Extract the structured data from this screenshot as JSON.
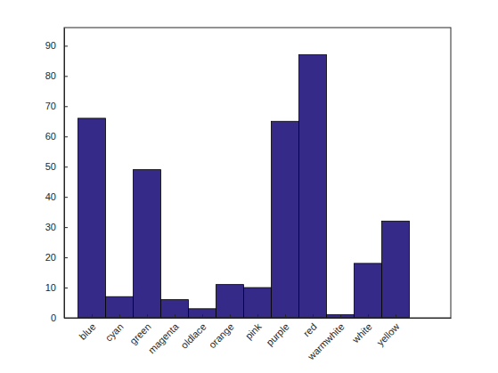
{
  "chart_data": {
    "type": "bar",
    "categories": [
      "blue",
      "cyan",
      "green",
      "magenta",
      "oldlace",
      "orange",
      "pink",
      "purple",
      "red",
      "warmwhite",
      "white",
      "yellow"
    ],
    "values": [
      66,
      7,
      49,
      6,
      3,
      11,
      10,
      65,
      87,
      1,
      18,
      32
    ],
    "color": "#352a87",
    "ylim": [
      0,
      96
    ],
    "yticks": [
      0,
      10,
      20,
      30,
      40,
      50,
      60,
      70,
      80,
      90
    ],
    "grid": false
  }
}
